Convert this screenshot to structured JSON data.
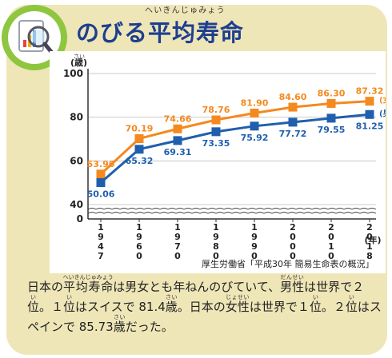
{
  "header": {
    "title": "のびる平均寿命",
    "title_ruby": "へいきんじゅみょう",
    "icon": "magnifier-chart-icon"
  },
  "chart_data": {
    "type": "line",
    "x": [
      "1947",
      "1960",
      "1970",
      "1980",
      "1990",
      "2000",
      "2010",
      "2018"
    ],
    "xlabel": "(年)",
    "ylabel": "(歳)",
    "ylabel_ruby": "さい",
    "ylim": [
      40,
      100
    ],
    "yticks": [
      0,
      40,
      60,
      80,
      100
    ],
    "axis_break": true,
    "series": [
      {
        "name": "(女)",
        "color": "#f4891f",
        "values": [
          53.96,
          70.19,
          74.66,
          78.76,
          81.9,
          84.6,
          86.3,
          87.32
        ]
      },
      {
        "name": "(男)",
        "color": "#1f5fae",
        "values": [
          50.06,
          65.32,
          69.31,
          73.35,
          75.92,
          77.72,
          79.55,
          81.25
        ]
      }
    ],
    "grid": true
  },
  "source": "厚生労働省「平成30年 簡易生命表の概況」",
  "body": {
    "p1": "日本の",
    "p1_ruby_word": "平均寿命",
    "p1_ruby": "へいきんじゅみょう",
    "p2": "は男女とも年ねんのびていて、",
    "p3_ruby_word": "男性",
    "p3_ruby": "だんせい",
    "p4": "は世界で２",
    "p5_ruby_word": "位",
    "p5_ruby": "い",
    "p6": "。１",
    "p7_ruby_word": "位",
    "p7_ruby": "い",
    "p8": "はスイスで 81.4",
    "p9_ruby_word": "歳",
    "p9_ruby": "さい",
    "p10": "。日本の",
    "p11_ruby_word": "女性",
    "p11_ruby": "じょせい",
    "p12": "は世界で１",
    "p13_ruby_word": "位",
    "p13_ruby": "い",
    "p14": "。２",
    "p15_ruby_word": "位",
    "p15_ruby": "い",
    "p16": "はスペインで 85.73",
    "p17_ruby_word": "歳",
    "p17_ruby": "さい",
    "p18": "だった。"
  }
}
